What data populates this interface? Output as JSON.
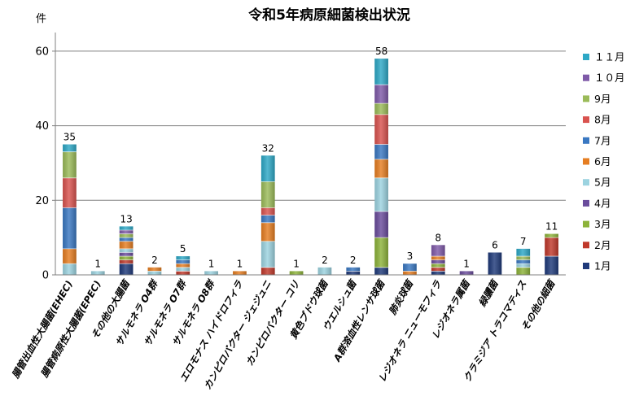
{
  "chart_data": {
    "type": "bar",
    "stacked": true,
    "title": "令和5年病原細菌検出状況",
    "ylabel": "件",
    "xlabel": "",
    "ylim": [
      0,
      65
    ],
    "yticks": [
      0,
      20,
      40,
      60
    ],
    "grid": true,
    "legend_position": "right",
    "categories": [
      "腸管出血性大腸菌(EHEC)",
      "腸管病原性大腸菌(EPEC)",
      "その他の大腸菌",
      "サルモネラ O4群",
      "サルモネラ O7群",
      "サルモネラ O8群",
      "エロモナス ハイドロフィラ",
      "カンピロバクター ジェジュニ",
      "カンピロバクター コリ",
      "黄色ブドウ球菌",
      "ウエルシュ菌",
      "A群溶血性レンサ球菌",
      "肺炎球菌",
      "レジオネラ ニューモフィラ",
      "レジオネラ属菌",
      "緑膿菌",
      "クラミジア トラコマティス",
      "その他の細菌"
    ],
    "totals": [
      35,
      1,
      13,
      2,
      5,
      1,
      1,
      32,
      1,
      2,
      2,
      58,
      3,
      8,
      1,
      6,
      7,
      11
    ],
    "series": [
      {
        "name": "1月",
        "color": "#1F3A7A",
        "values": [
          0,
          0,
          3,
          0,
          0,
          0,
          0,
          0,
          0,
          0,
          1,
          2,
          0,
          1,
          0,
          6,
          0,
          5
        ]
      },
      {
        "name": "2月",
        "color": "#C0392B",
        "values": [
          0,
          0,
          1,
          0,
          1,
          0,
          0,
          2,
          0,
          0,
          0,
          0,
          0,
          1,
          0,
          0,
          0,
          5
        ]
      },
      {
        "name": "3月",
        "color": "#8DB33A",
        "values": [
          0,
          0,
          1,
          0,
          0,
          0,
          0,
          0,
          1,
          0,
          0,
          8,
          0,
          1,
          0,
          0,
          2,
          1
        ]
      },
      {
        "name": "4月",
        "color": "#6A4C9C",
        "values": [
          0,
          0,
          1,
          0,
          0,
          0,
          0,
          0,
          0,
          0,
          0,
          7,
          0,
          1,
          1,
          0,
          0,
          0
        ]
      },
      {
        "name": "5月",
        "color": "#9CD3E0",
        "values": [
          3,
          1,
          1,
          1,
          1,
          1,
          0,
          7,
          0,
          2,
          0,
          9,
          0,
          0,
          0,
          0,
          1,
          0
        ]
      },
      {
        "name": "6月",
        "color": "#E67E22",
        "values": [
          4,
          0,
          2,
          1,
          1,
          0,
          1,
          5,
          0,
          0,
          0,
          5,
          1,
          1,
          0,
          0,
          0,
          0
        ]
      },
      {
        "name": "7月",
        "color": "#3A78C2",
        "values": [
          11,
          0,
          1,
          0,
          1,
          0,
          0,
          2,
          0,
          0,
          1,
          4,
          2,
          0,
          0,
          0,
          1,
          0
        ]
      },
      {
        "name": "8月",
        "color": "#D9534F",
        "values": [
          8,
          0,
          0,
          0,
          0,
          0,
          0,
          2,
          0,
          0,
          0,
          8,
          0,
          0,
          0,
          0,
          0,
          0
        ]
      },
      {
        "name": "9月",
        "color": "#9BBB59",
        "values": [
          7,
          0,
          1,
          0,
          0,
          0,
          0,
          7,
          0,
          0,
          0,
          3,
          0,
          0,
          0,
          0,
          1,
          0
        ]
      },
      {
        "name": "１０月",
        "color": "#7F5AA8",
        "values": [
          0,
          0,
          1,
          0,
          0,
          0,
          0,
          0,
          0,
          0,
          0,
          5,
          0,
          3,
          0,
          0,
          0,
          0
        ]
      },
      {
        "name": "１１月",
        "color": "#2EA8C6",
        "values": [
          2,
          0,
          1,
          0,
          1,
          0,
          0,
          7,
          0,
          0,
          0,
          7,
          0,
          0,
          0,
          0,
          2,
          0
        ]
      }
    ]
  }
}
